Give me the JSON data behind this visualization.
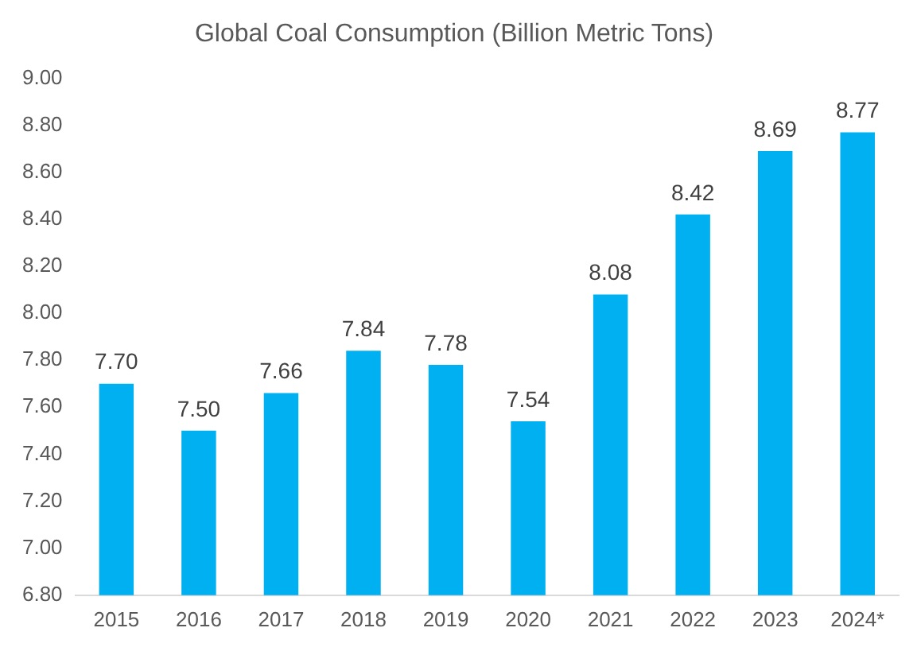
{
  "chart_data": {
    "type": "bar",
    "title": "Global Coal Consumption (Billion Metric Tons)",
    "categories": [
      "2015",
      "2016",
      "2017",
      "2018",
      "2019",
      "2020",
      "2021",
      "2022",
      "2023",
      "2024*"
    ],
    "values": [
      7.7,
      7.5,
      7.66,
      7.84,
      7.78,
      7.54,
      8.08,
      8.42,
      8.69,
      8.77
    ],
    "value_labels": [
      "7.70",
      "7.50",
      "7.66",
      "7.84",
      "7.78",
      "7.54",
      "8.08",
      "8.42",
      "8.69",
      "8.77"
    ],
    "color": "#00b0f0",
    "ylim": [
      6.8,
      9.0
    ],
    "yticks": [
      {
        "value": 6.8,
        "label": "6.80"
      },
      {
        "value": 7.0,
        "label": "7.00"
      },
      {
        "value": 7.2,
        "label": "7.20"
      },
      {
        "value": 7.4,
        "label": "7.40"
      },
      {
        "value": 7.6,
        "label": "7.60"
      },
      {
        "value": 7.8,
        "label": "7.80"
      },
      {
        "value": 8.0,
        "label": "8.00"
      },
      {
        "value": 8.2,
        "label": "8.20"
      },
      {
        "value": 8.4,
        "label": "8.40"
      },
      {
        "value": 8.6,
        "label": "8.60"
      },
      {
        "value": 8.8,
        "label": "8.80"
      },
      {
        "value": 9.0,
        "label": "9.00"
      }
    ],
    "grid": false,
    "legend": false
  }
}
